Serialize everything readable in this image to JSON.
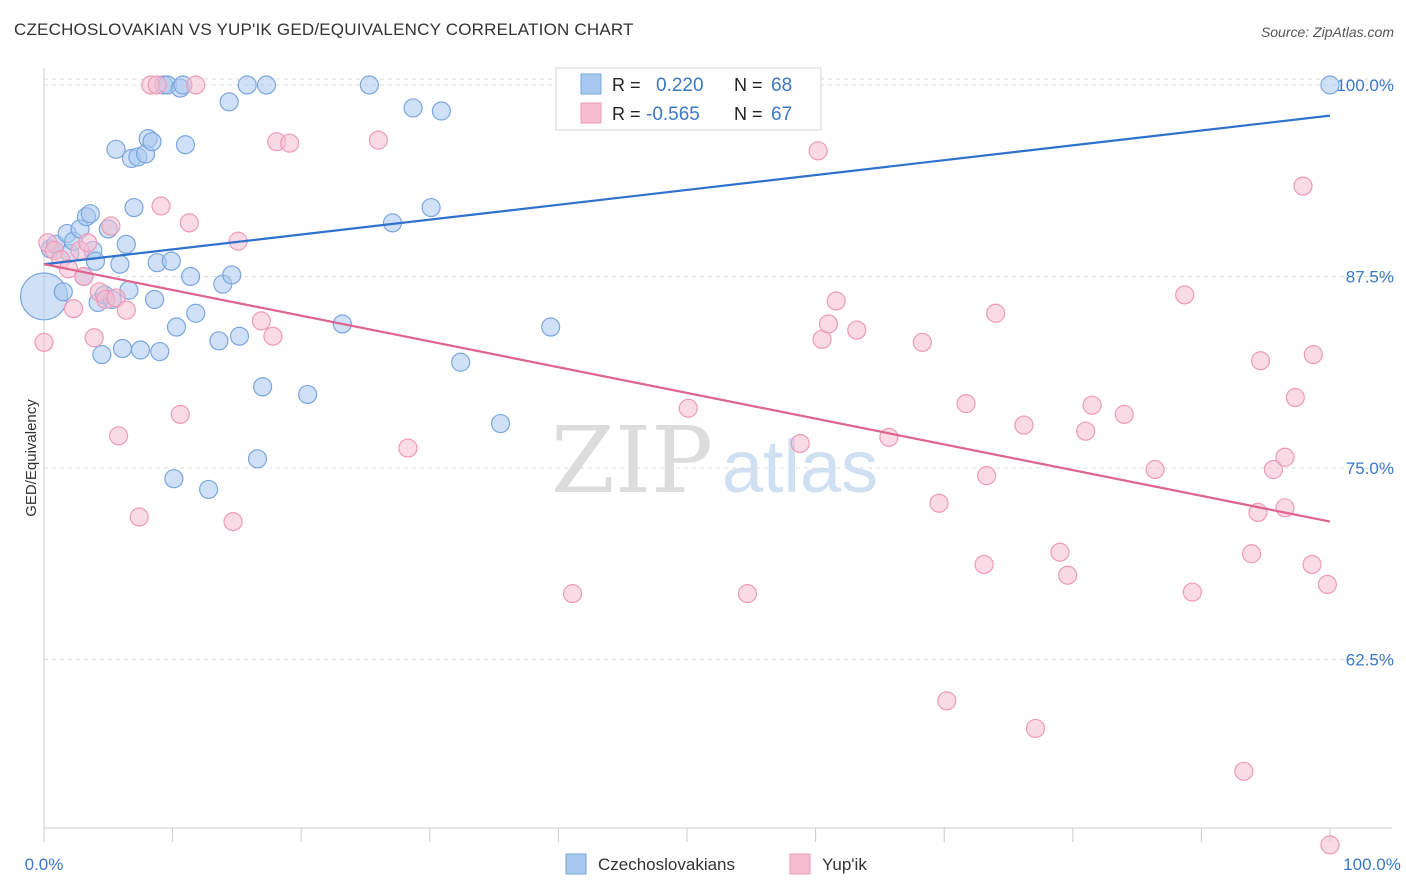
{
  "title": "CZECHOSLOVAKIAN VS YUP'IK GED/EQUIVALENCY CORRELATION CHART",
  "source": "Source: ZipAtlas.com",
  "watermark": {
    "zip": "ZIP",
    "atlas": "atlas"
  },
  "legend_box": {
    "rows": [
      {
        "r_label": "R =",
        "r_value": "0.220",
        "n_label": "N =",
        "n_value": "68"
      },
      {
        "r_label": "R =",
        "r_value": "-0.565",
        "n_label": "N =",
        "n_value": "67"
      }
    ]
  },
  "bottom_legend": [
    "Czechoslovakians",
    "Yup'ik"
  ],
  "colors": {
    "blue_fill": "#a9c8f0",
    "blue_stroke": "#7aa6de",
    "blue_line": "#2f72cc",
    "pink_fill": "#f6bcd0",
    "pink_stroke": "#ee9ab8",
    "pink_line": "#e0638e",
    "tick_label": "#3a78c8",
    "grid": "#dcdcdc"
  },
  "chart_data": {
    "type": "scatter",
    "title": "CZECHOSLOVAKIAN VS YUP'IK GED/EQUIVALENCY CORRELATION CHART",
    "xlabel": "",
    "ylabel": "GED/Equivalency",
    "xlim": [
      0,
      100
    ],
    "ylim": [
      51.5,
      101.5
    ],
    "x_tick_labels": [
      "0.0%",
      "100.0%"
    ],
    "y_ticks": [
      62.5,
      75.0,
      87.5,
      100.0
    ],
    "y_tick_labels": [
      "62.5%",
      "75.0%",
      "87.5%",
      "100.0%"
    ],
    "grid": "horizontal dashed",
    "legend_position": "top-center",
    "series": [
      {
        "name": "Czechoslovakians",
        "r": 0.22,
        "n": 68,
        "trend": {
          "x": [
            0,
            100
          ],
          "y": [
            88.3,
            98.0
          ]
        },
        "points": [
          [
            0.0,
            86.2,
            2.6
          ],
          [
            0.5,
            89.3,
            1
          ],
          [
            0.9,
            89.6,
            1
          ],
          [
            1.5,
            86.5,
            1
          ],
          [
            1.8,
            90.3,
            1
          ],
          [
            2.0,
            89.0,
            1
          ],
          [
            2.3,
            89.8,
            1
          ],
          [
            2.8,
            90.6,
            1
          ],
          [
            3.1,
            87.5,
            1
          ],
          [
            3.3,
            91.4,
            1
          ],
          [
            3.6,
            91.6,
            1
          ],
          [
            3.8,
            89.2,
            1
          ],
          [
            4.0,
            88.5,
            1
          ],
          [
            4.2,
            85.8,
            1
          ],
          [
            4.5,
            82.4,
            1
          ],
          [
            4.7,
            86.3,
            1
          ],
          [
            5.0,
            90.6,
            1
          ],
          [
            5.3,
            86.0,
            1
          ],
          [
            5.6,
            95.8,
            1
          ],
          [
            5.9,
            88.3,
            1
          ],
          [
            6.1,
            82.8,
            1
          ],
          [
            6.4,
            89.6,
            1
          ],
          [
            6.6,
            86.6,
            1
          ],
          [
            6.8,
            95.2,
            1
          ],
          [
            7.0,
            92.0,
            1
          ],
          [
            7.3,
            95.3,
            1
          ],
          [
            7.5,
            82.7,
            1
          ],
          [
            7.9,
            95.5,
            1
          ],
          [
            8.1,
            96.5,
            1
          ],
          [
            8.4,
            96.3,
            1
          ],
          [
            8.6,
            86.0,
            1
          ],
          [
            8.8,
            88.4,
            1
          ],
          [
            9.0,
            82.6,
            1
          ],
          [
            9.3,
            100.0,
            1
          ],
          [
            9.6,
            100.0,
            1
          ],
          [
            9.9,
            88.5,
            1
          ],
          [
            10.1,
            74.3,
            1
          ],
          [
            10.3,
            84.2,
            1
          ],
          [
            10.6,
            99.8,
            1
          ],
          [
            10.8,
            100.0,
            1
          ],
          [
            11.0,
            96.1,
            1
          ],
          [
            11.4,
            87.5,
            1
          ],
          [
            11.8,
            85.1,
            1
          ],
          [
            12.8,
            73.6,
            1
          ],
          [
            13.6,
            83.3,
            1
          ],
          [
            13.9,
            87.0,
            1
          ],
          [
            14.4,
            98.9,
            1
          ],
          [
            14.6,
            87.6,
            1
          ],
          [
            15.2,
            83.6,
            1
          ],
          [
            15.8,
            100.0,
            1
          ],
          [
            16.6,
            75.6,
            1
          ],
          [
            17.0,
            80.3,
            1
          ],
          [
            17.3,
            100.0,
            1
          ],
          [
            20.5,
            79.8,
            1
          ],
          [
            23.2,
            84.4,
            1
          ],
          [
            25.3,
            100.0,
            1
          ],
          [
            27.1,
            91.0,
            1
          ],
          [
            28.7,
            98.5,
            1
          ],
          [
            30.1,
            92.0,
            1
          ],
          [
            30.9,
            98.3,
            1
          ],
          [
            32.4,
            81.9,
            1
          ],
          [
            35.5,
            77.9,
            1
          ],
          [
            39.4,
            84.2,
            1
          ],
          [
            100.0,
            100.0,
            1
          ]
        ]
      },
      {
        "name": "Yup'ik",
        "r": -0.565,
        "n": 67,
        "trend": {
          "x": [
            0,
            100
          ],
          "y": [
            88.3,
            71.5
          ]
        },
        "points": [
          [
            0.0,
            83.2,
            1
          ],
          [
            0.3,
            89.7,
            1
          ],
          [
            0.8,
            89.2,
            1
          ],
          [
            1.3,
            88.6,
            1
          ],
          [
            1.9,
            88.0,
            1
          ],
          [
            2.3,
            85.4,
            1
          ],
          [
            2.8,
            89.2,
            1
          ],
          [
            3.1,
            87.5,
            1
          ],
          [
            3.4,
            89.7,
            1
          ],
          [
            3.9,
            83.5,
            1
          ],
          [
            4.3,
            86.5,
            1
          ],
          [
            4.8,
            86.0,
            1
          ],
          [
            5.2,
            90.8,
            1
          ],
          [
            5.6,
            86.1,
            1
          ],
          [
            5.8,
            77.1,
            1
          ],
          [
            6.4,
            85.3,
            1
          ],
          [
            7.4,
            71.8,
            1
          ],
          [
            8.3,
            100.0,
            1
          ],
          [
            8.8,
            100.0,
            1
          ],
          [
            9.1,
            92.1,
            1
          ],
          [
            10.6,
            78.5,
            1
          ],
          [
            11.3,
            91.0,
            1
          ],
          [
            11.8,
            100.0,
            1
          ],
          [
            14.7,
            71.5,
            1
          ],
          [
            15.1,
            89.8,
            1
          ],
          [
            16.9,
            84.6,
            1
          ],
          [
            17.8,
            83.6,
            1
          ],
          [
            18.1,
            96.3,
            1
          ],
          [
            19.1,
            96.2,
            1
          ],
          [
            26.0,
            96.4,
            1
          ],
          [
            28.3,
            76.3,
            1
          ],
          [
            41.1,
            66.8,
            1
          ],
          [
            50.1,
            78.9,
            1
          ],
          [
            54.7,
            66.8,
            1
          ],
          [
            58.8,
            76.6,
            1
          ],
          [
            60.2,
            95.7,
            1
          ],
          [
            60.5,
            83.4,
            1
          ],
          [
            61.0,
            84.4,
            1
          ],
          [
            61.6,
            85.9,
            1
          ],
          [
            63.2,
            84.0,
            1
          ],
          [
            65.7,
            77.0,
            1
          ],
          [
            68.3,
            83.2,
            1
          ],
          [
            69.6,
            72.7,
            1
          ],
          [
            70.2,
            59.8,
            1
          ],
          [
            71.7,
            79.2,
            1
          ],
          [
            73.1,
            68.7,
            1
          ],
          [
            73.3,
            74.5,
            1
          ],
          [
            74.0,
            85.1,
            1
          ],
          [
            76.2,
            77.8,
            1
          ],
          [
            77.1,
            58.0,
            1
          ],
          [
            79.0,
            69.5,
            1
          ],
          [
            79.6,
            68.0,
            1
          ],
          [
            81.0,
            77.4,
            1
          ],
          [
            81.5,
            79.1,
            1
          ],
          [
            84.0,
            78.5,
            1
          ],
          [
            86.4,
            74.9,
            1
          ],
          [
            88.7,
            86.3,
            1
          ],
          [
            89.3,
            66.9,
            1
          ],
          [
            93.3,
            55.2,
            1
          ],
          [
            93.9,
            69.4,
            1
          ],
          [
            94.4,
            72.1,
            1
          ],
          [
            94.6,
            82.0,
            1
          ],
          [
            95.6,
            74.9,
            1
          ],
          [
            96.5,
            75.7,
            1
          ],
          [
            96.5,
            72.4,
            1
          ],
          [
            97.3,
            79.6,
            1
          ],
          [
            97.9,
            93.4,
            1
          ],
          [
            98.6,
            68.7,
            1
          ],
          [
            98.7,
            82.4,
            1
          ],
          [
            99.8,
            67.4,
            1
          ],
          [
            100.0,
            50.4,
            1
          ]
        ]
      }
    ]
  }
}
